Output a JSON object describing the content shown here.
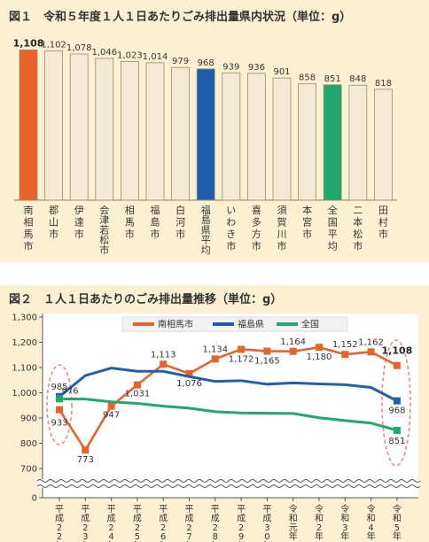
{
  "chart_data": [
    {
      "type": "bar",
      "title": "図１　令和５年度１人１日あたりごみ排出量県内状況（単位：g）",
      "categories": [
        "南相馬市",
        "郡山市",
        "伊達市",
        "会津若松市",
        "相馬市",
        "福島市",
        "白河市",
        "福島県平均",
        "いわき市",
        "喜多方市",
        "須賀川市",
        "本宮市",
        "全国平均",
        "二本松市",
        "田村市"
      ],
      "values": [
        1108,
        1102,
        1078,
        1046,
        1023,
        1014,
        979,
        968,
        939,
        936,
        901,
        858,
        851,
        848,
        818
      ],
      "value_labels": [
        "1,108",
        "1,102",
        "1,078",
        "1,046",
        "1,023",
        "1,014",
        "979",
        "968",
        "939",
        "936",
        "901",
        "858",
        "851",
        "848",
        "818"
      ],
      "highlight": {
        "南相馬市": "#e8622c",
        "福島県平均": "#1f5fb0",
        "全国平均": "#1daa6a"
      },
      "default_color": "#f3ead6",
      "ylim": [
        0,
        1150
      ],
      "xlabel": "",
      "ylabel": ""
    },
    {
      "type": "line",
      "title": "図２　１人１日あたりのごみ排出量推移（単位：g）",
      "categories": [
        "平成22年",
        "平成23年",
        "平成24年",
        "平成25年",
        "平成26年",
        "平成27年",
        "平成28年",
        "平成29年",
        "平成30年",
        "令和元年",
        "令和2年",
        "令和3年",
        "令和4年",
        "令和5年"
      ],
      "y_ticks": [
        "0",
        "700",
        "800",
        "900",
        "1,000",
        "1,100",
        "1,200",
        "1,300"
      ],
      "ylim": [
        700,
        1300
      ],
      "axis_break": true,
      "grid": false,
      "legend_position": "top-center",
      "series": [
        {
          "name": "南相馬市",
          "color": "#e8622c",
          "values": [
            933,
            773,
            947,
            1031,
            1113,
            1076,
            1134,
            1172,
            1165,
            1164,
            1180,
            1152,
            1162,
            1108
          ],
          "labels": [
            "933",
            "773",
            "947",
            "1,031",
            "1,113",
            "1,076",
            "1,134",
            "1,172",
            "1,165",
            "1,164",
            "1,180",
            "1,152",
            "1,162",
            "1,108"
          ]
        },
        {
          "name": "福島県",
          "color": "#1f5fb0",
          "values": [
            985,
            1068,
            1098,
            1085,
            1085,
            1064,
            1045,
            1048,
            1034,
            1039,
            1035,
            1032,
            1021,
            968
          ],
          "labels": [
            "985",
            "",
            "",
            "",
            "",
            "",
            "",
            "",
            "",
            "",
            "",
            "",
            "",
            "968"
          ]
        },
        {
          "name": "全国",
          "color": "#1daa6a",
          "values": [
            976,
            975,
            964,
            958,
            947,
            939,
            925,
            920,
            919,
            918,
            901,
            890,
            880,
            851
          ],
          "labels": [
            "976",
            "",
            "",
            "",
            "",
            "",
            "",
            "",
            "",
            "",
            "",
            "",
            "",
            "851"
          ]
        }
      ],
      "xlabel": "",
      "ylabel": ""
    }
  ]
}
